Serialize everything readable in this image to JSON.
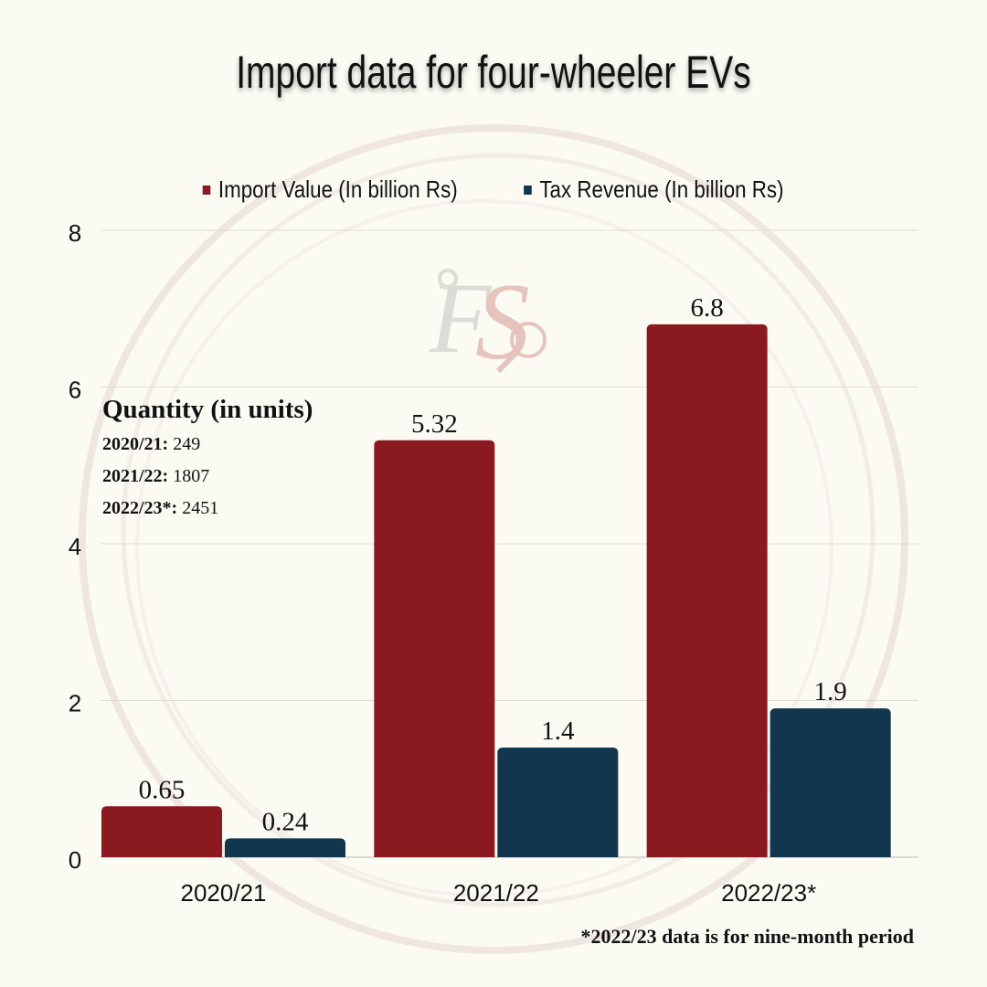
{
  "chart_data": {
    "type": "bar",
    "title": "Import data for four-wheeler EVs",
    "categories": [
      "2020/21",
      "2021/22",
      "2022/23*"
    ],
    "series": [
      {
        "name": "Import Value (In billion Rs)",
        "values": [
          0.65,
          5.32,
          6.8
        ],
        "color": "#8b1a20"
      },
      {
        "name": "Tax Revenue (In billion Rs)",
        "values": [
          0.24,
          1.4,
          1.9
        ],
        "color": "#11364e"
      }
    ],
    "data_labels": [
      [
        "0.65",
        "5.32",
        "6.8"
      ],
      [
        "0.24",
        "1.4",
        "1.9"
      ]
    ],
    "ylim": [
      0,
      8
    ],
    "yticks": [
      0,
      2,
      4,
      6,
      8
    ],
    "ytick_labels": [
      "0",
      "2",
      "4",
      "6",
      "8"
    ],
    "grid": true,
    "legend_position": "top-center"
  },
  "quantity": {
    "title": "Quantity (in units)",
    "rows": [
      {
        "year": "2020/21:",
        "value": "249"
      },
      {
        "year": "2021/22:",
        "value": "1807"
      },
      {
        "year": "2022/23*:",
        "value": "2451"
      }
    ]
  },
  "footnote": "*2022/23 data is for nine-month period",
  "watermark_logo": "FS"
}
